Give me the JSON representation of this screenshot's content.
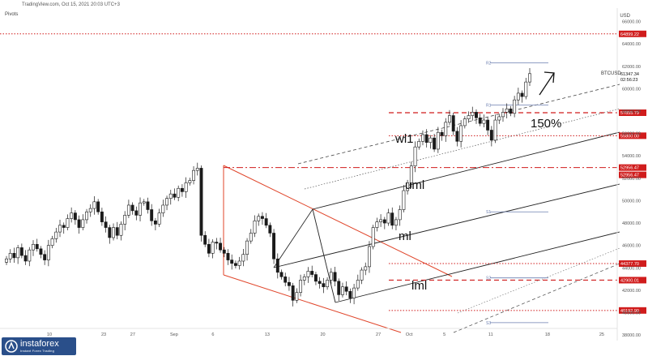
{
  "header": {
    "source": "TradingView.com, Oct 15, 2021 20:03 UTC+3",
    "indicator": "Pivots",
    "currency": "USD",
    "symbol": "BTCUSD"
  },
  "brand": {
    "name": "instaforex",
    "tagline": "Instant Forex Trading"
  },
  "colors": {
    "candle": "#1a1a1a",
    "level_line": "#d01c1c",
    "channel": "#222222",
    "downtrend": "#e0452a",
    "pivot": "#6c7fb0",
    "axis_text": "#555555"
  },
  "chart_data": {
    "type": "candlestick",
    "title": "",
    "xlabel": "",
    "ylabel": "",
    "ylim": [
      37500,
      67200
    ],
    "y_ticks": [
      38000,
      40000,
      42000,
      44000,
      46000,
      48000,
      50000,
      52000,
      54000,
      56000,
      58000,
      60000,
      62000,
      64000,
      66000
    ],
    "x_ticks": [
      "10",
      "23",
      "27",
      "Sep",
      "6",
      "13",
      "20",
      "27",
      "Oct",
      "5",
      "11",
      "18",
      "25"
    ],
    "last_price": {
      "value": 61347.34,
      "label": "61347.34",
      "countdown": "02:56:23"
    },
    "levels": [
      {
        "value": 64899.22,
        "label": "64899.22",
        "style": "dotted"
      },
      {
        "value": 57855.79,
        "label": "57855.79",
        "style": "dashed"
      },
      {
        "value": 55800.0,
        "label": "55800.00",
        "style": "dotted"
      },
      {
        "value": 52956.47,
        "label": "52956.47",
        "style": "dashdot"
      },
      {
        "value": 44377.7,
        "label": "44377.70",
        "style": "dotted"
      },
      {
        "value": 42900.01,
        "label": "42900.01",
        "style": "dashed"
      },
      {
        "value": 40192.9,
        "label": "40192.90",
        "style": "dotted"
      }
    ],
    "pivots": [
      {
        "name": "R2",
        "value": 62300
      },
      {
        "name": "R1",
        "value": 58550
      },
      {
        "name": "S1",
        "value": 49000
      },
      {
        "name": "S2",
        "value": 43100
      },
      {
        "name": "S3",
        "value": 39100
      }
    ],
    "annotations": [
      "wl1",
      "uml",
      "ml",
      "lml",
      "150%"
    ],
    "candles_close": [
      44800,
      45300,
      44900,
      45800,
      45100,
      44600,
      45600,
      46100,
      45700,
      45200,
      44700,
      46000,
      46600,
      47200,
      47800,
      47600,
      48400,
      48900,
      48300,
      47600,
      48300,
      49000,
      49300,
      49900,
      49000,
      48100,
      47600,
      46700,
      47600,
      46900,
      47900,
      48700,
      49600,
      49100,
      48700,
      49800,
      49900,
      49200,
      48200,
      47900,
      48900,
      49600,
      50200,
      50600,
      50300,
      51100,
      50800,
      51600,
      51800,
      52700,
      52900,
      46900,
      46100,
      45300,
      46300,
      46200,
      45600,
      45300,
      44700,
      44400,
      44200,
      44600,
      45200,
      46400,
      47100,
      48200,
      48600,
      48400,
      47800,
      47100,
      44800,
      43600,
      43200,
      42700,
      42400,
      41100,
      41800,
      42900,
      43200,
      43700,
      43400,
      42800,
      42600,
      42300,
      42900,
      43600,
      42800,
      41600,
      42300,
      41900,
      41300,
      42200,
      42900,
      43800,
      44100,
      45900,
      47600,
      48100,
      48300,
      48000,
      48900,
      47800,
      48300,
      49200,
      50900,
      51600,
      53100,
      54800,
      55300,
      55900,
      55200,
      55600,
      54600,
      56100,
      55800,
      57000,
      57600,
      56200,
      55300,
      56700,
      57300,
      57600,
      57900,
      57400,
      56900,
      57200,
      56300,
      55400,
      57200,
      57500,
      57900,
      58200,
      57800,
      59000,
      59600,
      59300,
      60600,
      61347
    ]
  }
}
